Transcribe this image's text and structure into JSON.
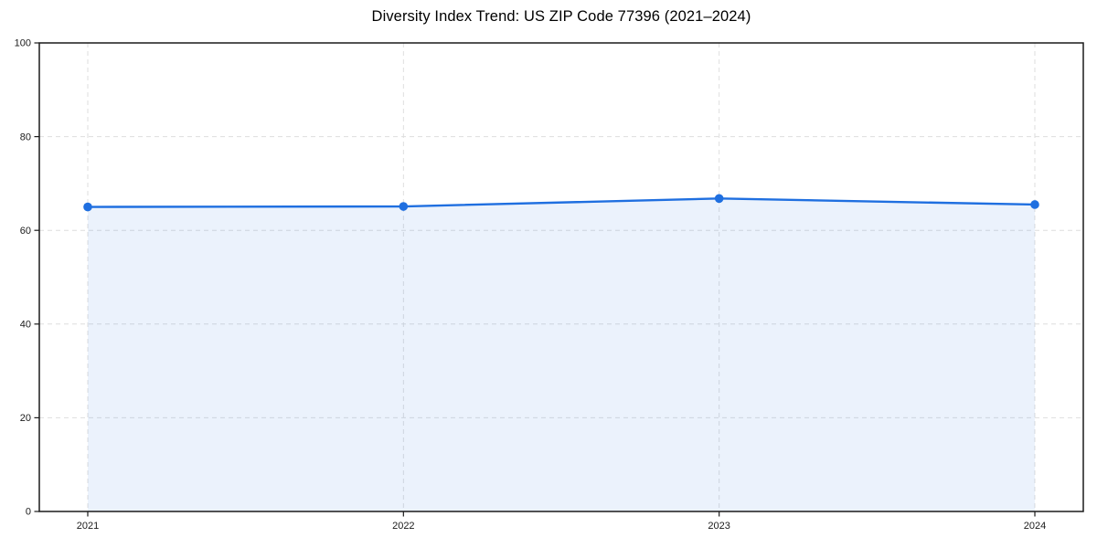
{
  "chart_data": {
    "type": "area",
    "title": "Diversity Index Trend: US ZIP Code 77396 (2021–2024)",
    "x": [
      "2021",
      "2022",
      "2023",
      "2024"
    ],
    "series": [
      {
        "name": "Diversity Index",
        "values": [
          65.0,
          65.1,
          66.8,
          65.5
        ]
      }
    ],
    "xlabel": "",
    "ylabel": "",
    "ylim": [
      0,
      100
    ],
    "yticks": [
      0,
      20,
      40,
      60,
      80,
      100
    ],
    "grid": true,
    "grid_style": "dashed",
    "legend": false,
    "colors": {
      "line": "#1f6fe0",
      "marker": "#1f6fe0",
      "fill": "#1f6fe0",
      "fill_opacity": 0.09,
      "grid": "#dedede",
      "spine": "#1a1a1a",
      "tick_text": "#1a1a1a",
      "background": "#ffffff"
    }
  }
}
